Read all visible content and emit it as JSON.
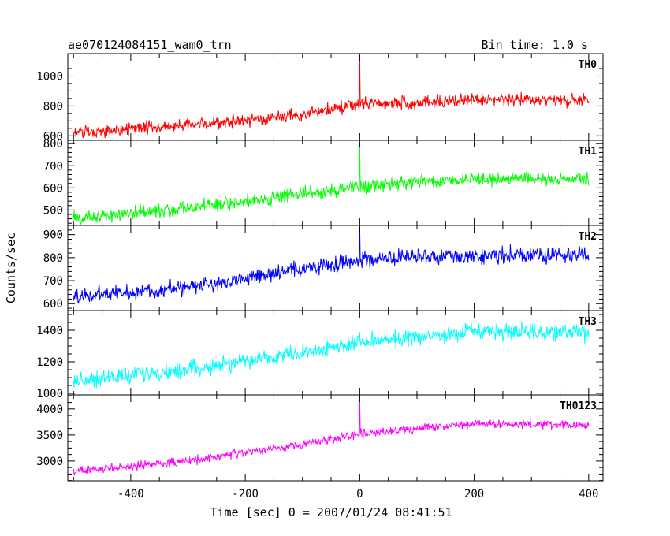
{
  "header": {
    "title": "ae070124084151_wam0_trn",
    "bin_time": "Bin time: 1.0 s"
  },
  "axes": {
    "xlabel": "Time [sec] 0 = 2007/01/24 08:41:51",
    "ylabel": "Counts/sec"
  },
  "chart_data": {
    "type": "line",
    "title": "ae070124084151_wam0_trn",
    "subtitle": "Bin time: 1.0 s",
    "xlabel": "Time [sec] 0 = 2007/01/24 08:41:51",
    "ylabel": "Counts/sec",
    "xlim": [
      -510,
      425
    ],
    "x_ticks": [
      -400,
      -200,
      0,
      200,
      400
    ],
    "x_range": [
      -500,
      400
    ],
    "x_step": 1,
    "grid": false,
    "legend": "none",
    "panels": [
      {
        "label": "TH0",
        "color": "#ff0000",
        "ylim": [
          570,
          1150
        ],
        "y_ticks": [
          600,
          800,
          1000
        ],
        "trend": [
          [
            -500,
            620
          ],
          [
            -300,
            670
          ],
          [
            -100,
            740
          ],
          [
            0,
            810
          ],
          [
            200,
            840
          ],
          [
            400,
            840
          ]
        ],
        "noise": 38,
        "spike": {
          "x": 0,
          "y": 1140
        }
      },
      {
        "label": "TH1",
        "color": "#00ff00",
        "ylim": [
          430,
          815
        ],
        "y_ticks": [
          500,
          600,
          700,
          800
        ],
        "trend": [
          [
            -500,
            460
          ],
          [
            -300,
            510
          ],
          [
            -100,
            570
          ],
          [
            0,
            610
          ],
          [
            200,
            640
          ],
          [
            400,
            640
          ]
        ],
        "noise": 28,
        "spike": {
          "x": 0,
          "y": 800
        }
      },
      {
        "label": "TH2",
        "color": "#0000ff",
        "ylim": [
          570,
          940
        ],
        "y_ticks": [
          600,
          700,
          800,
          900
        ],
        "trend": [
          [
            -500,
            630
          ],
          [
            -300,
            670
          ],
          [
            -100,
            750
          ],
          [
            0,
            790
          ],
          [
            200,
            810
          ],
          [
            400,
            810
          ]
        ],
        "noise": 30,
        "spike": {
          "x": 0,
          "y": 945
        }
      },
      {
        "label": "TH3",
        "color": "#00ffff",
        "ylim": [
          990,
          1525
        ],
        "y_ticks": [
          1000,
          1200,
          1400
        ],
        "trend": [
          [
            -500,
            1080
          ],
          [
            -300,
            1150
          ],
          [
            -100,
            1260
          ],
          [
            0,
            1320
          ],
          [
            200,
            1390
          ],
          [
            400,
            1380
          ]
        ],
        "noise": 45,
        "spike": {
          "x": 0,
          "y": 1390
        }
      },
      {
        "label": "TH0123",
        "color": "#ff00ff",
        "ylim": [
          2620,
          4270
        ],
        "y_ticks": [
          3000,
          3500,
          4000
        ],
        "trend": [
          [
            -500,
            2800
          ],
          [
            -300,
            3000
          ],
          [
            -100,
            3320
          ],
          [
            0,
            3530
          ],
          [
            200,
            3720
          ],
          [
            400,
            3680
          ]
        ],
        "noise": 70,
        "spike": {
          "x": 0,
          "y": 4260
        }
      }
    ]
  }
}
